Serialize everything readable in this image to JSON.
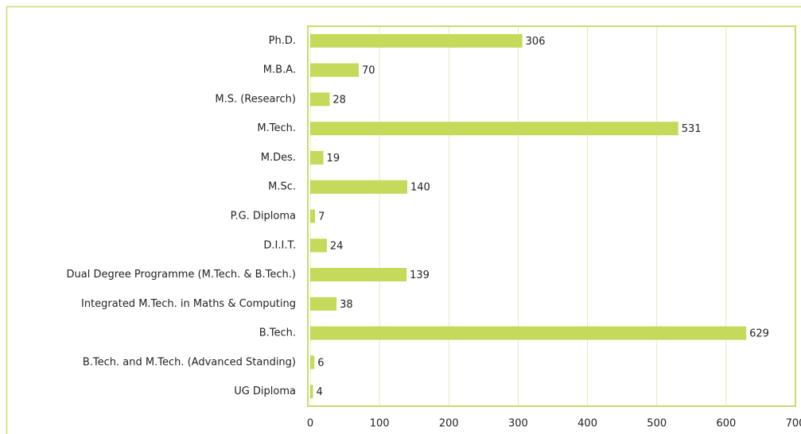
{
  "chart_data": {
    "type": "bar",
    "orientation": "horizontal",
    "categories": [
      "Ph.D.",
      "M.B.A.",
      "M.S. (Research)",
      "M.Tech.",
      "M.Des.",
      "M.Sc.",
      "P.G. Diploma",
      "D.I.I.T.",
      "Dual Degree Programme (M.Tech. & B.Tech.)",
      "Integrated M.Tech. in Maths & Computing",
      "B.Tech.",
      "B.Tech. and M.Tech. (Advanced Standing)",
      "UG Diploma"
    ],
    "values": [
      306,
      70,
      28,
      531,
      19,
      140,
      7,
      24,
      139,
      38,
      629,
      6,
      4
    ],
    "color": "#c5d95a",
    "xlim": [
      0,
      700
    ],
    "xticks": [
      0,
      100,
      200,
      300,
      400,
      500,
      600,
      700
    ],
    "grid": true
  }
}
